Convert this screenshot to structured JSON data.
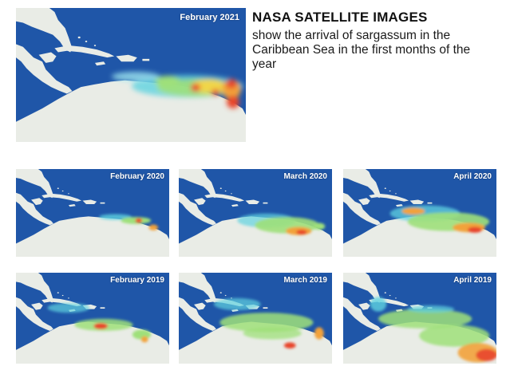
{
  "headline": "NASA SATELLITE IMAGES",
  "subtext": "show the arrival of sargassum in the Caribbean Sea in the first months of the year",
  "colors": {
    "ocean": "#1f56a8",
    "land": "#e9ece6",
    "sargassum_low": "#5fd3e0",
    "sargassum_mid": "#9fe07a",
    "sargassum_high": "#f2a23a",
    "sargassum_peak": "#e8452c"
  },
  "maps": [
    {
      "id": "feb-2021",
      "label": "February 2021"
    },
    {
      "id": "feb-2020",
      "label": "February 2020"
    },
    {
      "id": "mar-2020",
      "label": "March 2020"
    },
    {
      "id": "apr-2020",
      "label": "April 2020"
    },
    {
      "id": "feb-2019",
      "label": "February 2019"
    },
    {
      "id": "mar-2019",
      "label": "March 2019"
    },
    {
      "id": "apr-2019",
      "label": "April 2019"
    }
  ]
}
